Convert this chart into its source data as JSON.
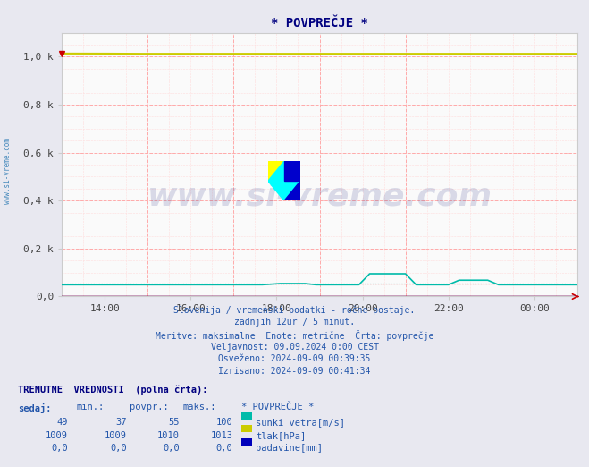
{
  "title": "* POVPREČJE *",
  "bg_color": "#e8e8f0",
  "plot_bg_color": "#fafafa",
  "title_color": "#000080",
  "grid_color_major": "#ffaaaa",
  "grid_color_minor": "#ffdddd",
  "xmin": 0,
  "xmax": 144,
  "ymin": 0.0,
  "ymax": 1100,
  "yticks": [
    0,
    200,
    400,
    600,
    800,
    1000
  ],
  "ytick_labels": [
    "0,0",
    "0,2 k",
    "0,4 k",
    "0,6 k",
    "0,8 k",
    "1,0 k"
  ],
  "xtick_positions": [
    12,
    36,
    60,
    84,
    108,
    132
  ],
  "xtick_labels": [
    "14:00",
    "16:00",
    "18:00",
    "20:00",
    "22:00",
    "00:00"
  ],
  "line_tlak_color": "#cccc00",
  "line_sunki_color": "#00bbaa",
  "line_padavine_color": "#0000bb",
  "line_sunki_avg_color": "#009988",
  "watermark_text": "www.si-vreme.com",
  "watermark_color": "#1a237e",
  "watermark_alpha": 0.15,
  "info_lines": [
    "Slovenija / vremenski podatki - ročne postaje.",
    "zadnjih 12ur / 5 minut.",
    "Meritve: maksimalne  Enote: metrične  Črta: povprečje",
    "Veljavnost: 09.09.2024 0:00 CEST",
    "Osveženo: 2024-09-09 00:39:35",
    "Izrisano: 2024-09-09 00:41:34"
  ],
  "table_header": "TRENUTNE  VREDNOSTI  (polna črta):",
  "table_col_labels": [
    "sedaj:",
    "min.:",
    "povpr.:",
    "maks.:",
    "* POVPREČJE *"
  ],
  "table_rows": [
    [
      "49",
      "37",
      "55",
      "100",
      "sunki vetra[m/s]",
      "#00bbaa"
    ],
    [
      "1009",
      "1009",
      "1010",
      "1013",
      "tlak[hPa]",
      "#cccc00"
    ],
    [
      "0,0",
      "0,0",
      "0,0",
      "0,0",
      "padavine[mm]",
      "#0000bb"
    ]
  ],
  "axis_color": "#cc0000",
  "spine_color": "#cccccc",
  "tick_color": "#444444",
  "left_label": "www.si-vreme.com",
  "left_label_color": "#4488bb"
}
